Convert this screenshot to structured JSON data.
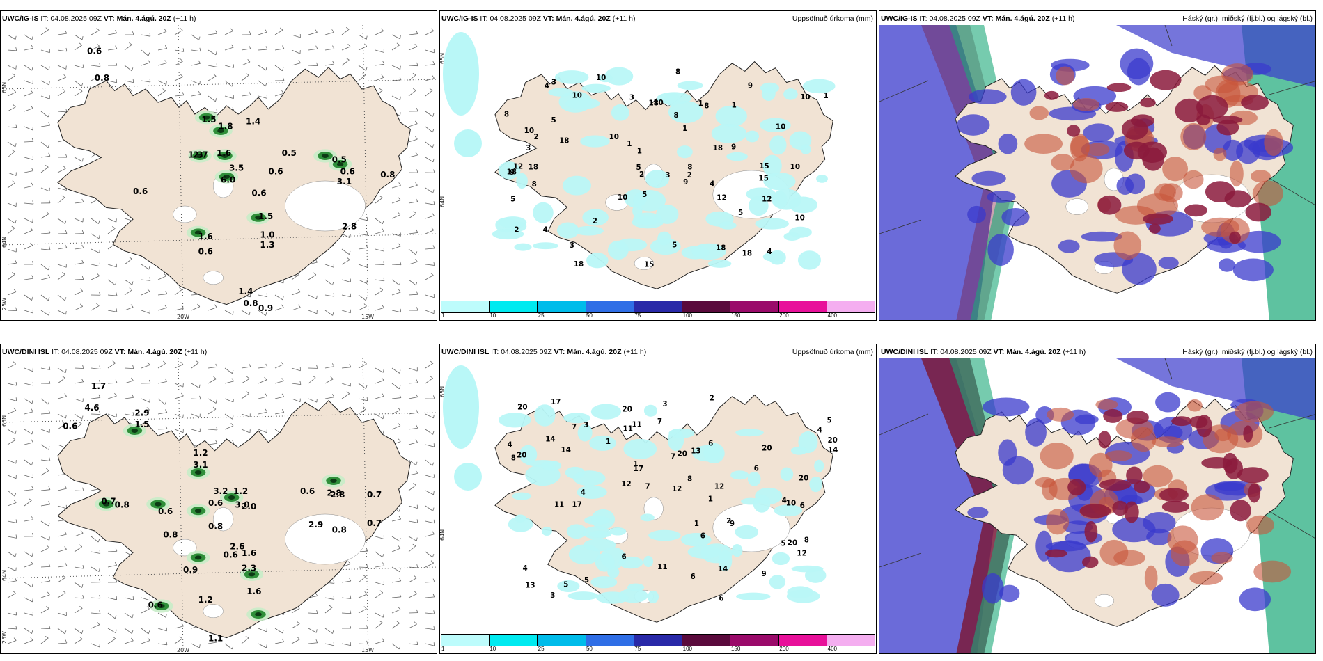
{
  "rows": [
    {
      "model": "UWC/IG-IS",
      "it_label": "IT:",
      "it_value": "04.08.2025 09Z",
      "vt_label": "VT:",
      "vt_value": "Mán. 4.ágú. 20Z",
      "lead": "(+11 h)",
      "wind_labels": [
        "0.6",
        "0.8",
        "1.5",
        "1.8",
        "1.4",
        "2.7",
        "1.6",
        "3.5",
        "1.3",
        "6.0",
        "0.6",
        "0.5",
        "0.6",
        "0.5",
        "0.6",
        "3.1",
        "0.8",
        "0.6",
        "2.8",
        "1.5",
        "1.0",
        "1.3",
        "1.6",
        "0.6",
        "1.4",
        "0.8",
        "0.9"
      ],
      "precip_labels": [
        "1",
        "2",
        "3",
        "4",
        "5",
        "8",
        "9",
        "10",
        "12",
        "15",
        "18"
      ]
    },
    {
      "model": "UWC/DINI ISL",
      "it_label": "IT:",
      "it_value": "04.08.2025 09Z",
      "vt_label": "VT:",
      "vt_value": "Mán. 4.ágú. 20Z",
      "lead": "(+11 h)",
      "wind_labels": [
        "1.7",
        "4.6",
        "0.6",
        "2.9",
        "1.5",
        "1.2",
        "3.1",
        "0.7",
        "2.8",
        "0.8",
        "0.6",
        "3.2",
        "1.2",
        "3.0",
        "0.6",
        "0.8",
        "0.8",
        "2.6",
        "2.8",
        "0.7",
        "0.7",
        "2.9",
        "0.8",
        "0.6",
        "2.0",
        "1.6",
        "0.6",
        "0.9",
        "1.6",
        "2.3",
        "1.2",
        "0.6",
        "1.1"
      ],
      "precip_labels": [
        "1",
        "2",
        "3",
        "4",
        "5",
        "6",
        "7",
        "8",
        "9",
        "10",
        "11",
        "12",
        "13",
        "14",
        "17",
        "20"
      ]
    }
  ],
  "precip_title": "Uppsöfnuð úrkoma (mm)",
  "cloud_title": "Háský (gr.), miðský (fj.bl.) og lágský (bl.)",
  "axis_ticks": {
    "lon": [
      "20W",
      "15W"
    ],
    "lat": [
      "65N",
      "64N"
    ],
    "edge": "25W"
  },
  "colorbar": {
    "ticks": [
      "1",
      "10",
      "25",
      "50",
      "75",
      "100",
      "150",
      "200",
      "400",
      ""
    ],
    "colors": [
      "#bdfcfc",
      "#00eaf0",
      "#00bcea",
      "#2f6ee6",
      "#2929a8",
      "#5a0a3c",
      "#9a0a6a",
      "#e8109a",
      "#f4aef0"
    ]
  },
  "colors": {
    "land": "#f1e3d4",
    "precip_light": "#b9f7f7",
    "wind_green": "#2f8f3a",
    "cloud_high": "#8b1a3c",
    "cloud_mid": "#3a3acc",
    "cloud_low": "#1aa878"
  }
}
